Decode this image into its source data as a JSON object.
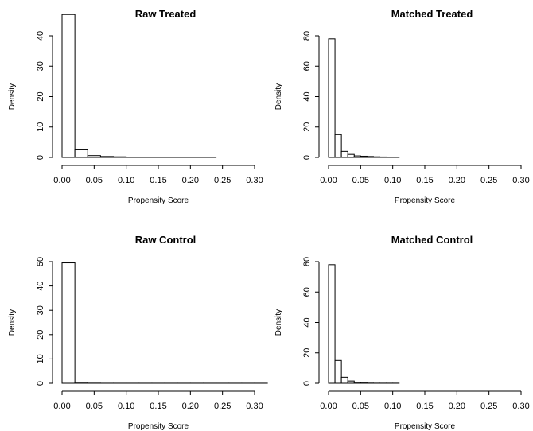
{
  "chart_data": [
    {
      "type": "bar",
      "title": "Raw Treated",
      "xlabel": "Propensity Score",
      "ylabel": "Density",
      "xlim": [
        0,
        0.3
      ],
      "ylim": [
        0,
        40
      ],
      "xticks": [
        "0.00",
        "0.05",
        "0.10",
        "0.15",
        "0.20",
        "0.25",
        "0.30"
      ],
      "yticks": [
        "0",
        "10",
        "20",
        "30",
        "40"
      ],
      "bin_width": 0.02,
      "bin_start": 0.0,
      "values": [
        47,
        2.5,
        0.6,
        0.3,
        0.2,
        0.05,
        0.05,
        0.05,
        0.05,
        0.05,
        0.05,
        0.05
      ]
    },
    {
      "type": "bar",
      "title": "Matched Treated",
      "xlabel": "Propensity Score",
      "ylabel": "Density",
      "xlim": [
        0,
        0.3
      ],
      "ylim": [
        0,
        80
      ],
      "xticks": [
        "0.00",
        "0.05",
        "0.10",
        "0.15",
        "0.20",
        "0.25",
        "0.30"
      ],
      "yticks": [
        "0",
        "20",
        "40",
        "60",
        "80"
      ],
      "bin_width": 0.01,
      "bin_start": 0.0,
      "values": [
        78,
        15,
        4,
        2,
        1,
        0.8,
        0.6,
        0.4,
        0.3,
        0.2,
        0.1
      ]
    },
    {
      "type": "bar",
      "title": "Raw Control",
      "xlabel": "Propensity Score",
      "ylabel": "Density",
      "xlim": [
        0,
        0.3
      ],
      "ylim": [
        0,
        50
      ],
      "xticks": [
        "0.00",
        "0.05",
        "0.10",
        "0.15",
        "0.20",
        "0.25",
        "0.30"
      ],
      "yticks": [
        "0",
        "10",
        "20",
        "30",
        "40",
        "50"
      ],
      "bin_width": 0.02,
      "bin_start": 0.0,
      "values": [
        49.5,
        0.4,
        0.05,
        0.02,
        0.02,
        0.02,
        0.02,
        0.02,
        0.02,
        0.02,
        0.02,
        0.02,
        0.02,
        0.02,
        0.02,
        0.02
      ]
    },
    {
      "type": "bar",
      "title": "Matched Control",
      "xlabel": "Propensity Score",
      "ylabel": "Density",
      "xlim": [
        0,
        0.3
      ],
      "ylim": [
        0,
        80
      ],
      "xticks": [
        "0.00",
        "0.05",
        "0.10",
        "0.15",
        "0.20",
        "0.25",
        "0.30"
      ],
      "yticks": [
        "0",
        "20",
        "40",
        "60",
        "80"
      ],
      "bin_width": 0.01,
      "bin_start": 0.0,
      "values": [
        78,
        15,
        4,
        1.5,
        0.6,
        0.2,
        0.1,
        0.05,
        0.05,
        0.05,
        0.05
      ]
    }
  ]
}
